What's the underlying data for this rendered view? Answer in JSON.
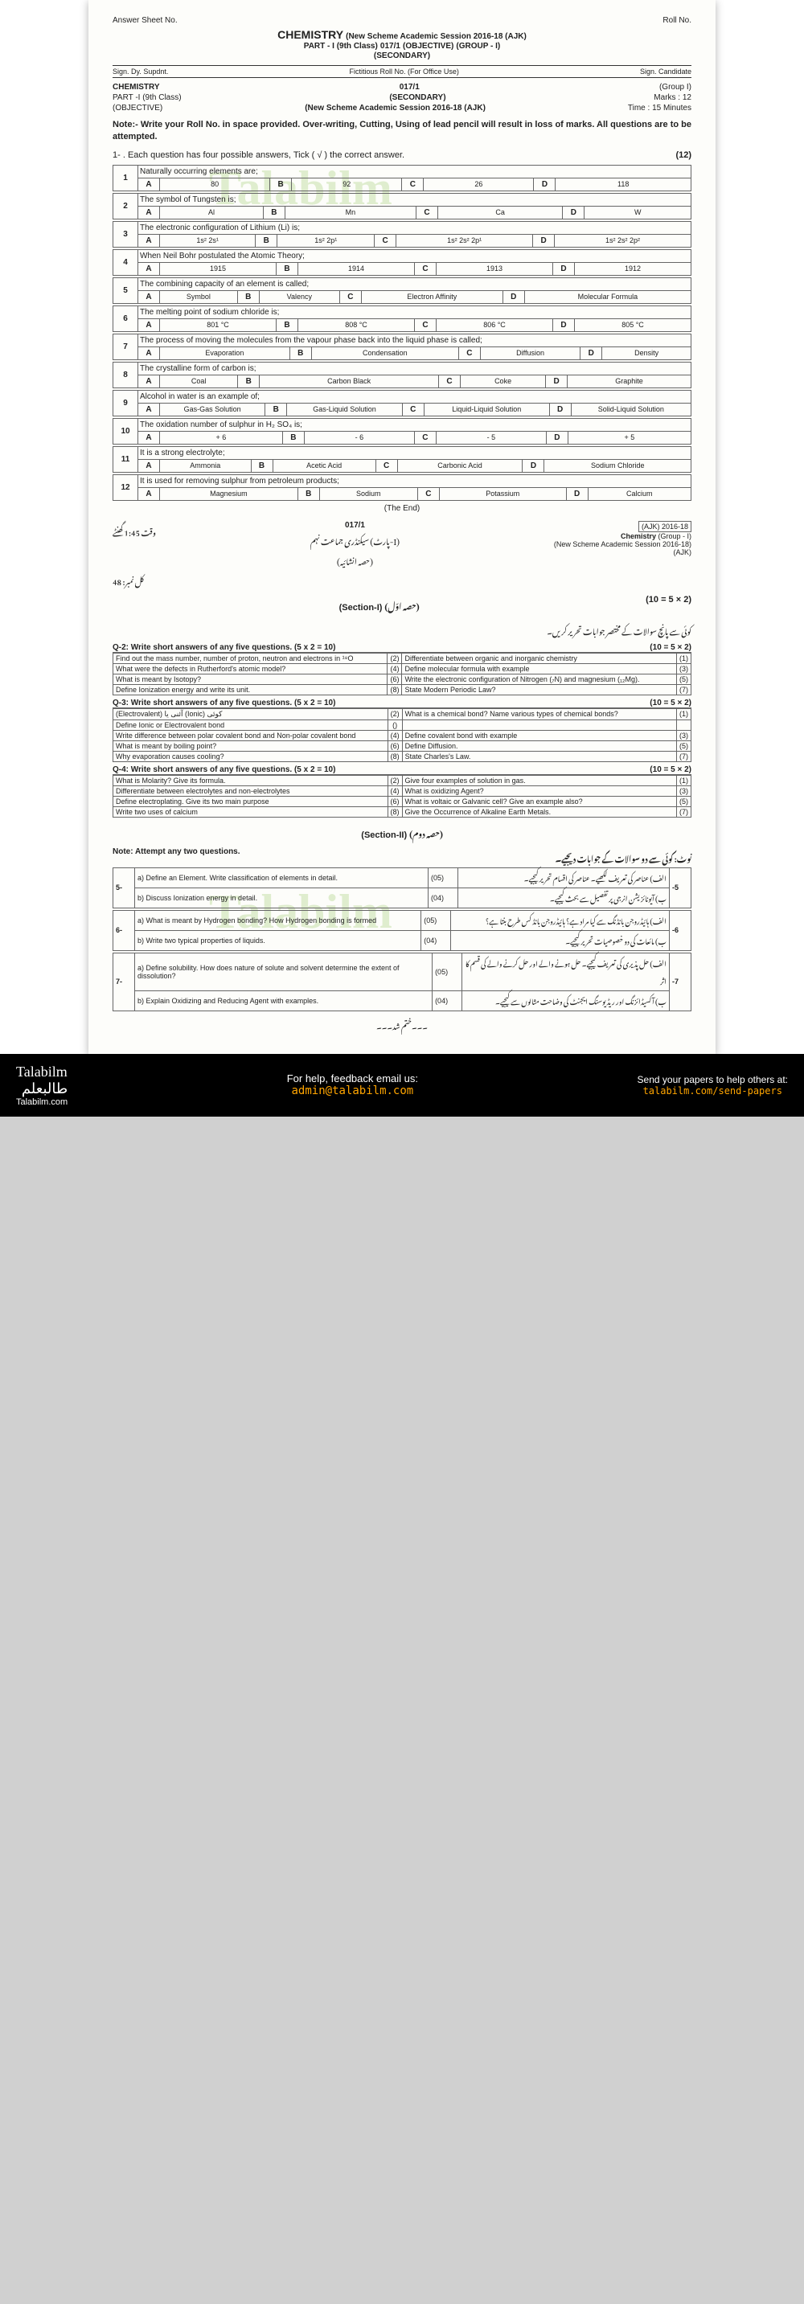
{
  "header": {
    "answer_sheet": "Answer Sheet No.",
    "subject": "CHEMISTRY",
    "session": "(New Scheme Academic Session 2016-18 (AJK)",
    "roll": "Roll No.",
    "part": "PART - I (9th Class)",
    "code": "017/1",
    "type": "(OBJECTIVE)",
    "group": "(GROUP - I)",
    "level": "(SECONDARY)",
    "sig1": "Sign. Dy. Supdnt.",
    "fict": "Fictitious Roll No. (For Office Use)",
    "sig2": "Sign. Candidate"
  },
  "meta": {
    "subject": "CHEMISTRY",
    "code": "017/1",
    "group": "(Group I)",
    "part": "PART -I (9th Class)",
    "level": "(SECONDARY)",
    "marks_lbl": "Marks :",
    "marks": "12",
    "obj": "(OBJECTIVE)",
    "session": "(New Scheme Academic Session 2016-18 (AJK)",
    "time_lbl": "Time :",
    "time": "15 Minutes"
  },
  "note": "Note:- Write your Roll No. in space provided. Over-writing, Cutting, Using of lead pencil will result in loss of marks. All questions are to be attempted.",
  "instruction": "1- . Each question has four possible answers, Tick ( √ ) the correct answer.",
  "instruction_marks": "(12)",
  "mcq": [
    {
      "n": "1",
      "q": "Naturally occurring elements are;",
      "opts": [
        "80",
        "92",
        "26",
        "118"
      ]
    },
    {
      "n": "2",
      "q": "The symbol of Tungsten is;",
      "opts": [
        "Al",
        "Mn",
        "Ca",
        "W"
      ]
    },
    {
      "n": "3",
      "q": "The electronic configuration of Lithium (Li) is;",
      "opts": [
        "1s² 2s¹",
        "1s² 2p¹",
        "1s² 2s² 2p¹",
        "1s² 2s² 2p²"
      ]
    },
    {
      "n": "4",
      "q": "When Neil Bohr postulated the Atomic Theory;",
      "opts": [
        "1915",
        "1914",
        "1913",
        "1912"
      ]
    },
    {
      "n": "5",
      "q": "The combining capacity of an element is called;",
      "opts": [
        "Symbol",
        "Valency",
        "Electron Affinity",
        "Molecular Formula"
      ]
    },
    {
      "n": "6",
      "q": "The melting point of sodium chloride is;",
      "opts": [
        "801 °C",
        "808 °C",
        "806 °C",
        "805 °C"
      ]
    },
    {
      "n": "7",
      "q": "The process of moving the molecules from the vapour phase back into the liquid phase is called;",
      "opts": [
        "Evaporation",
        "Condensation",
        "Diffusion",
        "Density"
      ]
    },
    {
      "n": "8",
      "q": "The crystalline form of carbon is;",
      "opts": [
        "Coal",
        "Carbon Black",
        "Coke",
        "Graphite"
      ]
    },
    {
      "n": "9",
      "q": "Alcohol in water is an example of;",
      "opts": [
        "Gas-Gas Solution",
        "Gas-Liquid Solution",
        "Liquid-Liquid Solution",
        "Solid-Liquid Solution"
      ]
    },
    {
      "n": "10",
      "q": "The oxidation number of sulphur in H₂ SO₄ is;",
      "opts": [
        "+ 6",
        "- 6",
        "- 5",
        "+ 5"
      ]
    },
    {
      "n": "11",
      "q": "It is a strong electrolyte;",
      "opts": [
        "Ammonia",
        "Acetic Acid",
        "Carbonic Acid",
        "Sodium Chloride"
      ]
    },
    {
      "n": "12",
      "q": "It is used for removing sulphur from petroleum products;",
      "opts": [
        "Magnesium",
        "Sodium",
        "Potassium",
        "Calcium"
      ]
    }
  ],
  "end": "(The End)",
  "part2": {
    "time": "وقت 1:45 گھنٹے",
    "code": "017/1",
    "urdu_title": "سیکنڈری جماعت نہم (پارٹ-I)",
    "urdu_sub": "(حصہ انشائیہ)",
    "total": "کل نمبر: 48",
    "box": "(AJK) 2016-18",
    "chem": "Chemistry",
    "grp": "(Group - I)",
    "sess": "(New Scheme Academic Session 2016-18)",
    "ajk": "(AJK)",
    "sec1": "(Section-I)",
    "sec1_urdu": "(حصہ اوّل)",
    "sec2": "(Section-II)",
    "sec2_urdu": "(حصہ دوم)",
    "formula": "(10 = 5 × 2)"
  },
  "q2": {
    "label": "Q-2:",
    "eng": "Write short answers of any five questions.",
    "marks": "(5 x 2 = 10)",
    "urdu": "کوئی سے پانچ سوالات کے مختصر جوابات تحریر کریں۔",
    "pairs": [
      {
        "en": "2",
        "et": "Find out the mass number, number of proton, neutron and electrons in ¹⁸O",
        "un": "(1)",
        "ut": "Differentiate between organic and inorganic chemistry"
      },
      {
        "en": "4",
        "et": "What were the defects in Rutherford's atomic model?",
        "un": "(3)",
        "ut": "Define molecular formula with example"
      },
      {
        "en": "6",
        "et": "What is meant by Isotopy?",
        "un": "(5)",
        "ut": "Write the electronic configuration of Nitrogen (₇N) and magnesium (₁₂Mg)."
      },
      {
        "en": "8",
        "et": "Define Ionization energy and write its unit.",
        "un": "(7)",
        "ut": "State Modern Periodic Law?"
      }
    ]
  },
  "q3": {
    "label": "Q-3:",
    "eng": "Write short answers of any five questions.",
    "marks": "(5 x 2 = 10)",
    "pairs": [
      {
        "en": "2",
        "et": "(Electrovalent) آئنی یا (Ionic) کوئی",
        "un": "(1)",
        "ut": "What is a chemical bond? Name various types of chemical bonds?"
      },
      {
        "en": "",
        "et": "Define Ionic or Electrovalent bond",
        "un": "",
        "ut": ""
      },
      {
        "en": "4",
        "et": "Write difference between polar covalent bond and Non-polar covalent bond",
        "un": "(3)",
        "ut": "Define covalent bond with example"
      },
      {
        "en": "6",
        "et": "What is meant by boiling point?",
        "un": "(5)",
        "ut": "Define Diffusion."
      },
      {
        "en": "8",
        "et": "Why evaporation causes cooling?",
        "un": "(7)",
        "ut": "State Charles's Law."
      }
    ]
  },
  "q4": {
    "label": "Q-4:",
    "eng": "Write short answers of any five questions.",
    "marks": "(5 x 2 = 10)",
    "pairs": [
      {
        "en": "2",
        "et": "What is Molarity? Give its formula.",
        "un": "(1)",
        "ut": "Give four examples of solution in gas."
      },
      {
        "en": "4",
        "et": "Differentiate between electrolytes and non-electrolytes",
        "un": "(3)",
        "ut": "What is oxidizing Agent?"
      },
      {
        "en": "6",
        "et": "Define electroplating. Give its two main purpose",
        "un": "(5)",
        "ut": "What is voltaic or Galvanic cell? Give an example also?"
      },
      {
        "en": "8",
        "et": "Write two uses of calcium",
        "un": "(7)",
        "ut": "Give the Occurrence of Alkaline Earth Metals."
      }
    ]
  },
  "sec2_note": "Note: Attempt any two questions.",
  "sec2_urdu": "نوٹ: کوئی سے دو سوالات کے جوابات دیجیے۔",
  "long": [
    {
      "n": "5-",
      "a": "a) Define an Element. Write classification of elements in detail.",
      "am": "(05)",
      "b": "b) Discuss Ionization energy in detail.",
      "bm": "(04)",
      "ua": "الف) عناصر کی تعریف لکھیے۔ عناصر کی اقسام تحریر کیجیے۔",
      "ub": "ب) آیونائزیشن انرجی پر تفصیل سے بحث کیجیے۔",
      "un": "-5"
    },
    {
      "n": "6-",
      "a": "a) What is meant by Hydrogen bonding? How Hydrogen bonding is formed",
      "am": "(05)",
      "b": "b) Write two typical properties of liquids.",
      "bm": "(04)",
      "ua": "الف) ہائیڈروجن بانڈنگ سے کیا مراد ہے؟ ہائیڈروجن بانڈ کس طرح بنتا ہے؟",
      "ub": "ب) مائعات کی دو خصوصیات تحریر کیجیے۔",
      "un": "-6"
    },
    {
      "n": "7-",
      "a": "a) Define solubility. How does nature of solute and solvent determine the extent of dissolution?",
      "am": "(05)",
      "b": "b) Explain Oxidizing and Reducing Agent with examples.",
      "bm": "(04)",
      "ua": "الف) حل پذیری کی تعریف کیجیے۔ حل ہونے والے اور حل کرنے والے کی قسم کا اثر",
      "ub": "ب) آکسیڈائزنگ اور ریڈیوسنگ ایجنٹ کی وضاحت مثالوں سے کیجیے۔",
      "un": "-7"
    }
  ],
  "khatam": "۔۔۔ختم شد۔۔۔",
  "footer": {
    "brand1": "Talabilm",
    "brand2": "طالبعلم",
    "brand3": "Talabilm.com",
    "help": "For help, feedback email us:",
    "email": "admin@talabilm.com",
    "send": "Send your papers to help others at:",
    "url": "talabilm.com/send-papers"
  },
  "colors": {
    "text": "#222222",
    "border": "#666666",
    "watermark": "#88c050",
    "footer_bg": "#000000",
    "footer_link": "#ffa500"
  }
}
